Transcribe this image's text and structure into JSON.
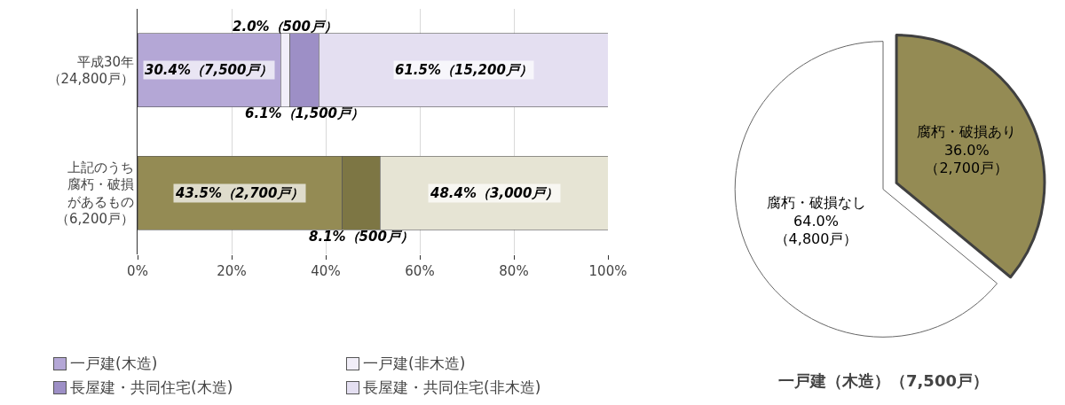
{
  "chart_data": [
    {
      "type": "bar",
      "orientation": "horizontal",
      "stacked": true,
      "categories": [
        "平成30年（24,800戸）",
        "上記のうち腐朽・破損があるもの（6,200戸）"
      ],
      "series": [
        {
          "name": "一戸建(木造)",
          "color": "#b4a7d6",
          "colors": [
            "#b4a7d6",
            "#948b54"
          ],
          "values": [
            30.4,
            43.5
          ],
          "value_labels": [
            "30.4%（7,500戸）",
            "43.5%（2,700戸）"
          ]
        },
        {
          "name": "一戸建(非木造)",
          "color": "#f1eef8",
          "colors": [
            "#f1eef8",
            "#f3f2ea"
          ],
          "values": [
            2.0,
            null
          ],
          "value_labels": [
            "2.0%（500戸）",
            null
          ]
        },
        {
          "name": "長屋建・共同住宅(木造)",
          "color": "#9d8fc6",
          "colors": [
            "#9d8fc6",
            "#7d7644"
          ],
          "values": [
            6.1,
            8.1
          ],
          "value_labels": [
            "6.1%（1,500戸）",
            "8.1%（500戸）"
          ]
        },
        {
          "name": "長屋建・共同住宅(非木造)",
          "color": "#e4dff1",
          "colors": [
            "#e4dff1",
            "#e6e4d4"
          ],
          "values": [
            61.5,
            48.4
          ],
          "value_labels": [
            "61.5%（15,200戸）",
            "48.4%（3,000戸）"
          ]
        }
      ],
      "xlim": [
        0,
        100
      ],
      "xticks": [
        {
          "value": 0,
          "label": "0%"
        },
        {
          "value": 20,
          "label": "20%"
        },
        {
          "value": 40,
          "label": "40%"
        },
        {
          "value": 60,
          "label": "60%"
        },
        {
          "value": 80,
          "label": "80%"
        },
        {
          "value": 100,
          "label": "100%"
        }
      ],
      "grid": "x",
      "legend": "bottom"
    },
    {
      "type": "pie",
      "title": "一戸建（木造）（7,500戸）",
      "categories": [
        "腐朽・破損あり",
        "腐朽・破損なし"
      ],
      "values": [
        36.0,
        64.0
      ],
      "colors": [
        "#948b54",
        "#ffffff"
      ],
      "value_labels": [
        "36.0%（2,700戸）",
        "64.0%（4,800戸）"
      ],
      "legend": false
    }
  ]
}
